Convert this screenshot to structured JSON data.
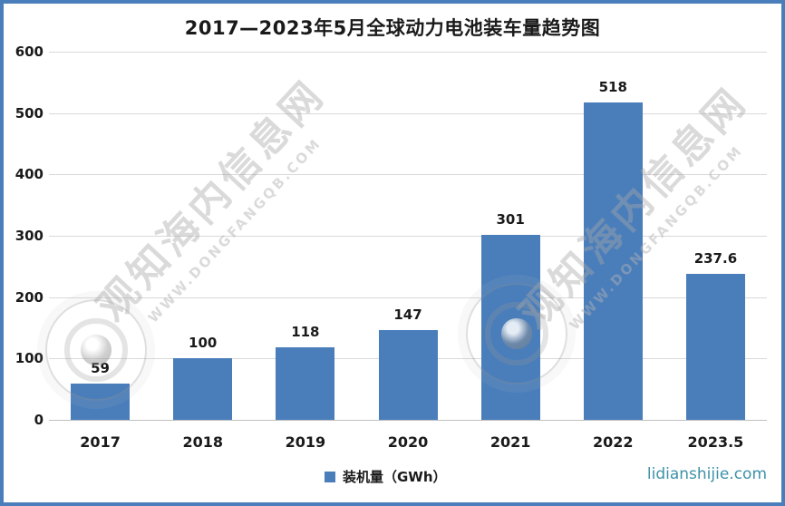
{
  "header": {
    "title": "2017—2023年5月全球动力电池装车量趋势图"
  },
  "chart_data": {
    "type": "bar",
    "title": "2017—2023年5月全球动力电池装车量趋势图",
    "categories": [
      "2017",
      "2018",
      "2019",
      "2020",
      "2021",
      "2022",
      "2023.5"
    ],
    "values": [
      59,
      100,
      118,
      147,
      301,
      518,
      237.6
    ],
    "xlabel": "",
    "ylabel": "",
    "ylim": [
      0,
      600
    ],
    "yticks": [
      0,
      100,
      200,
      300,
      400,
      500,
      600
    ],
    "grid": true,
    "legend_entries": [
      "装机量（GWh）"
    ],
    "legend_position": "bottom-center",
    "bar_color": "#4A7EBB",
    "gridline_color": "#D9D9D9",
    "data_labels_shown": true
  },
  "legend": {
    "label": "装机量（GWh）"
  },
  "watermarks": {
    "diagonal_main": "观知海内信息网",
    "diagonal_sub": "WWW.DONGFANGQB.COM",
    "site_link": "lidianshijie.com"
  },
  "colors": {
    "frame_border": "#4A7EBB",
    "bar": "#4A7EBB",
    "site_link_text": "#3D92A8"
  }
}
